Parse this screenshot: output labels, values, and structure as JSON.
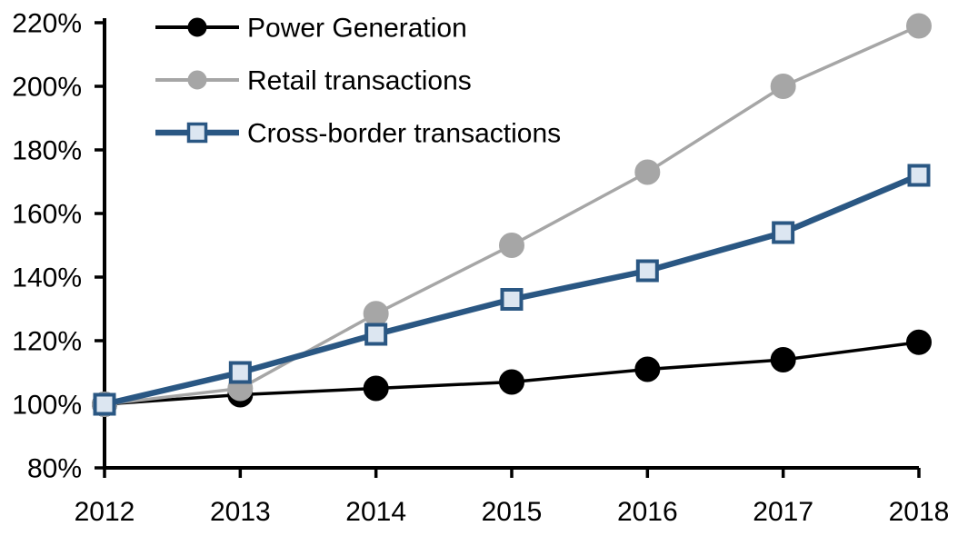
{
  "chart_data": {
    "type": "line",
    "title": "",
    "xlabel": "",
    "ylabel": "",
    "x": [
      "2012",
      "2013",
      "2014",
      "2015",
      "2016",
      "2017",
      "2018"
    ],
    "ylim": [
      80,
      220
    ],
    "ytick_step": 20,
    "ytick_labels": [
      "80%",
      "100%",
      "120%",
      "140%",
      "160%",
      "180%",
      "200%",
      "220%"
    ],
    "xtick_labels": [
      "2012",
      "2013",
      "2014",
      "2015",
      "2016",
      "2017",
      "2018"
    ],
    "grid": false,
    "legend_position": "top-left-inside",
    "axis_color": "#000000",
    "background_color": "#ffffff",
    "series": [
      {
        "name": "Power Generation",
        "marker": "circle",
        "line_color": "#000000",
        "marker_fill": "#000000",
        "marker_stroke": "#000000",
        "line_width": 3.5,
        "values": [
          100,
          103,
          105,
          107,
          111,
          114,
          119.5
        ]
      },
      {
        "name": "Retail transactions",
        "marker": "circle",
        "line_color": "#A6A6A6",
        "marker_fill": "#A6A6A6",
        "marker_stroke": "#A6A6A6",
        "line_width": 3.5,
        "values": [
          100,
          105,
          128.5,
          150,
          173,
          200,
          219
        ]
      },
      {
        "name": "Cross-border transactions",
        "marker": "square",
        "line_color": "#2A5783",
        "marker_fill": "#DCE6F1",
        "marker_stroke": "#2A5783",
        "line_width": 6.5,
        "values": [
          100,
          110,
          122,
          133,
          142,
          154,
          172
        ]
      }
    ]
  }
}
